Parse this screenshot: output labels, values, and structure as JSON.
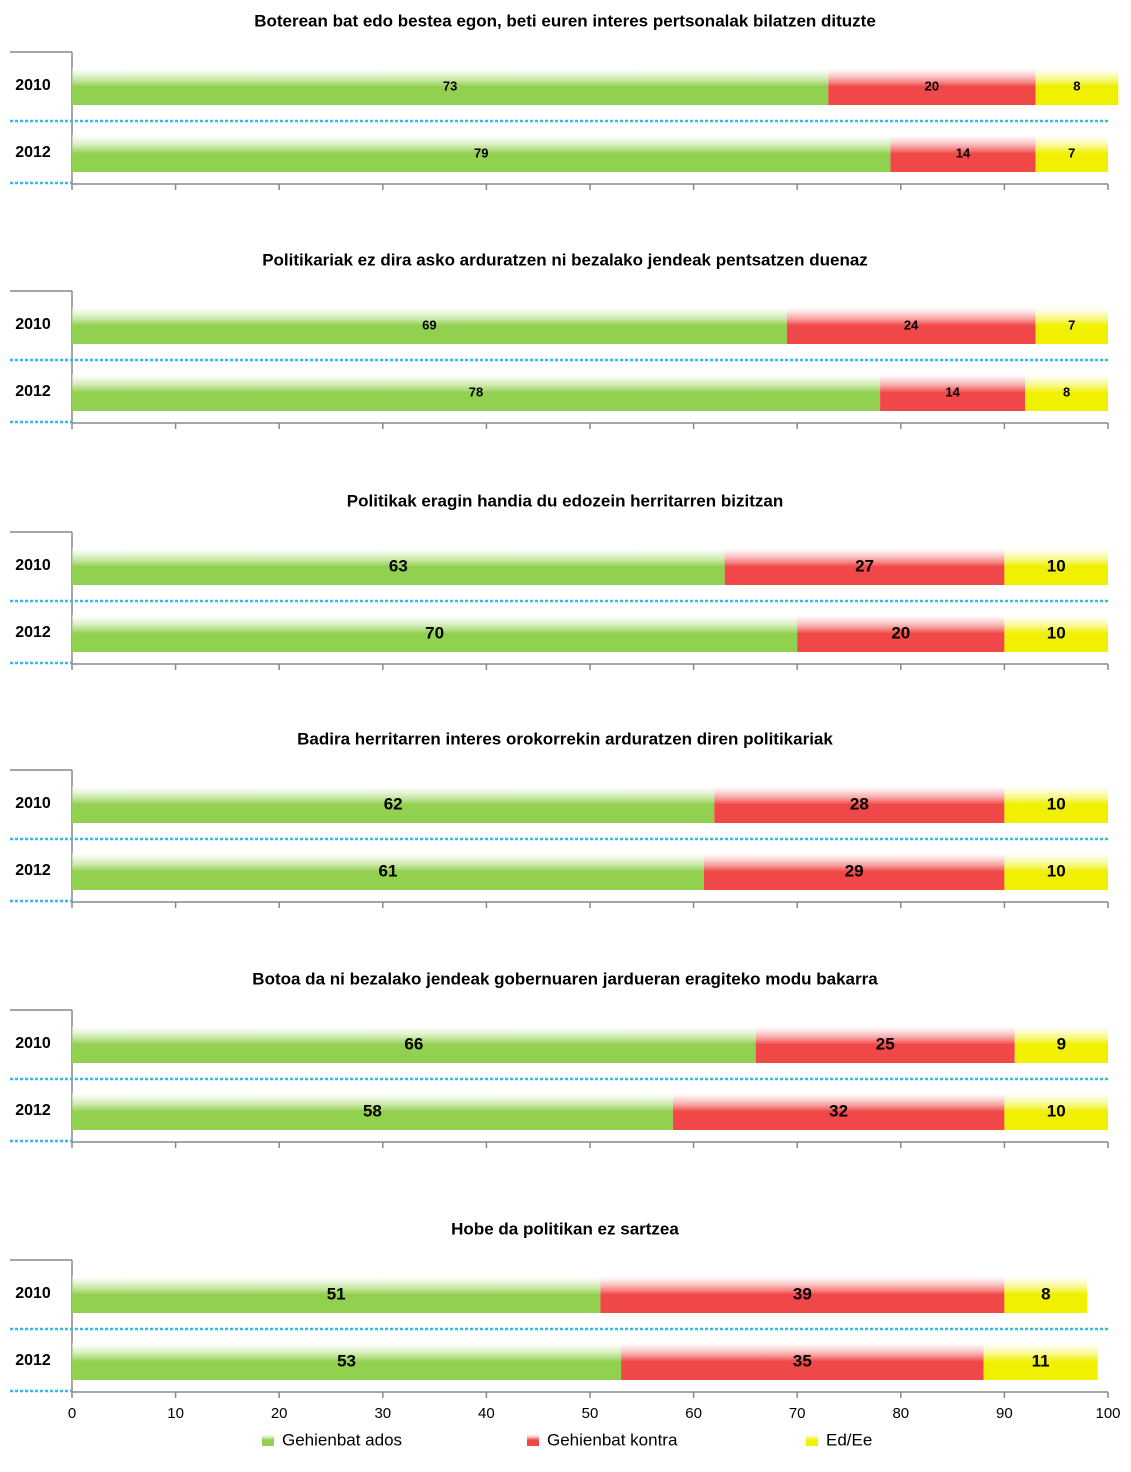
{
  "chart_data": {
    "type": "bar",
    "orientation": "horizontal",
    "stacked": true,
    "series": [
      {
        "name": "Gehienbat ados",
        "color": "#92d050"
      },
      {
        "name": "Gehienbat kontra",
        "color": "#f04848"
      },
      {
        "name": "Ed/Ee",
        "color": "#f0f000"
      }
    ],
    "panels": [
      {
        "title": "Boterean bat edo bestea egon, beti euren interes pertsonalak bilatzen dituzte",
        "categories": [
          "2010",
          "2012"
        ],
        "values": [
          [
            73,
            79
          ],
          [
            20,
            14
          ],
          [
            8,
            7
          ]
        ]
      },
      {
        "title": "Politikariak ez dira asko arduratzen ni bezalako jendeak pentsatzen duenaz",
        "categories": [
          "2010",
          "2012"
        ],
        "values": [
          [
            69,
            78
          ],
          [
            24,
            14
          ],
          [
            7,
            8
          ]
        ]
      },
      {
        "title": "Politikak eragin handia du edozein herritarren bizitzan",
        "categories": [
          "2010",
          "2012"
        ],
        "values": [
          [
            63,
            70
          ],
          [
            27,
            20
          ],
          [
            10,
            10
          ]
        ]
      },
      {
        "title": "Badira herritarren interes orokorrekin arduratzen diren politikariak",
        "categories": [
          "2010",
          "2012"
        ],
        "values": [
          [
            62,
            61
          ],
          [
            28,
            29
          ],
          [
            10,
            10
          ]
        ]
      },
      {
        "title": "Botoa da ni bezalako jendeak gobernuaren jardueran eragiteko modu bakarra",
        "categories": [
          "2010",
          "2012"
        ],
        "values": [
          [
            66,
            58
          ],
          [
            25,
            32
          ],
          [
            9,
            10
          ]
        ]
      },
      {
        "title": "Hobe da politikan ez sartzea",
        "categories": [
          "2010",
          "2012"
        ],
        "values": [
          [
            51,
            53
          ],
          [
            39,
            35
          ],
          [
            8,
            11
          ]
        ]
      }
    ],
    "xlim": [
      0,
      100
    ],
    "xticks": [
      0,
      10,
      20,
      30,
      40,
      50,
      60,
      70,
      80,
      90,
      100
    ]
  }
}
